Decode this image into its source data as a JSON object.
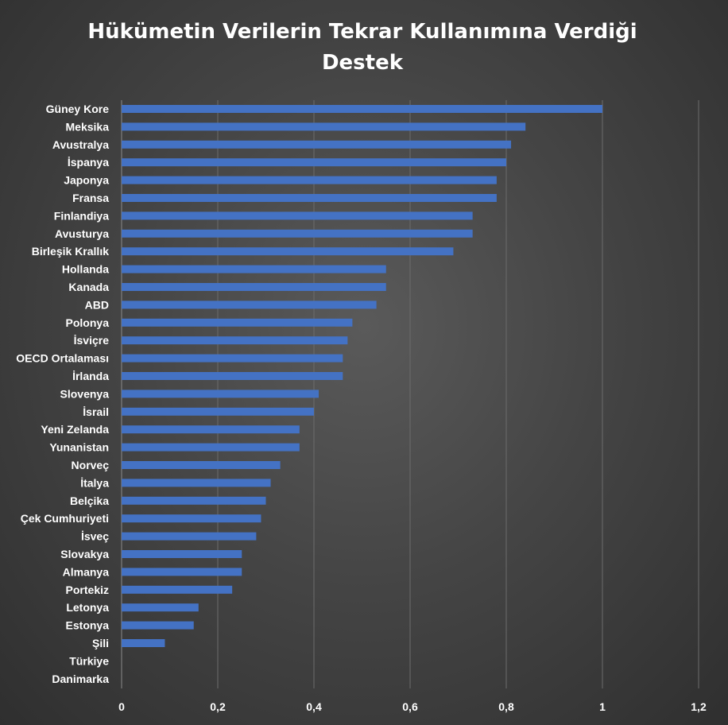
{
  "chart_data": {
    "type": "bar",
    "orientation": "horizontal",
    "title_lines": [
      "Hükümetin Verilerin Tekrar Kullanımına Verdiği",
      "Destek"
    ],
    "categories": [
      "Güney Kore",
      "Meksika",
      "Avustralya",
      "İspanya",
      "Japonya",
      "Fransa",
      "Finlandiya",
      "Avusturya",
      "Birleşik Krallık",
      "Hollanda",
      "Kanada",
      "ABD",
      "Polonya",
      "İsviçre",
      "OECD Ortalaması",
      "İrlanda",
      "Slovenya",
      "İsrail",
      "Yeni Zelanda",
      "Yunanistan",
      "Norveç",
      "İtalya",
      "Belçika",
      "Çek Cumhuriyeti",
      "İsveç",
      "Slovakya",
      "Almanya",
      "Portekiz",
      "Letonya",
      "Estonya",
      "Şili",
      "Türkiye",
      "Danimarka"
    ],
    "values": [
      1.0,
      0.84,
      0.81,
      0.8,
      0.78,
      0.78,
      0.73,
      0.73,
      0.69,
      0.55,
      0.55,
      0.53,
      0.48,
      0.47,
      0.46,
      0.46,
      0.41,
      0.4,
      0.37,
      0.37,
      0.33,
      0.31,
      0.3,
      0.29,
      0.28,
      0.25,
      0.25,
      0.23,
      0.16,
      0.15,
      0.09,
      0.0,
      0.0
    ],
    "xlim": [
      0,
      1.2
    ],
    "x_ticks": [
      "0",
      "0,2",
      "0,4",
      "0,6",
      "0,8",
      "1",
      "1,2"
    ],
    "x_tick_values": [
      0,
      0.2,
      0.4,
      0.6,
      0.8,
      1.0,
      1.2
    ],
    "grid": "vertical",
    "legend": "none",
    "bar_color": "#4472C4"
  }
}
